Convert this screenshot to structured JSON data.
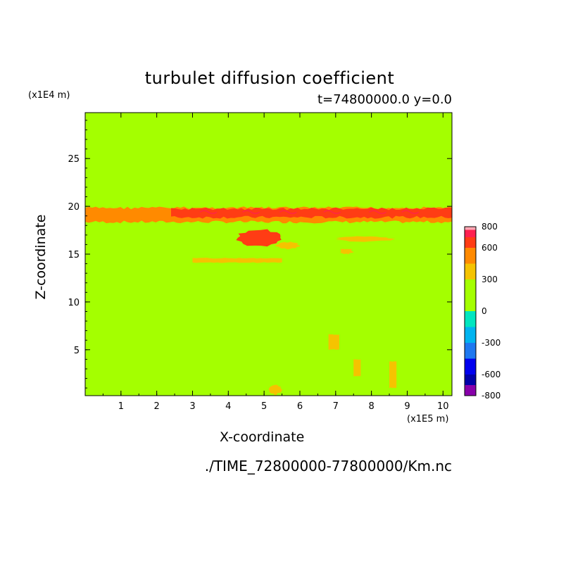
{
  "chart_data": {
    "type": "contour",
    "title": "turbulet diffusion coefficient",
    "subtitle": "t=74800000.0 y=0.0",
    "xlabel": "X-coordinate",
    "ylabel": "Z-coordinate",
    "x_unit": "(x1E5 m)",
    "y_unit": "(x1E4 m)",
    "xlim": [
      0,
      10.25
    ],
    "ylim": [
      0.2,
      29.8
    ],
    "x_ticks": [
      1,
      2,
      3,
      4,
      5,
      6,
      7,
      8,
      9,
      10
    ],
    "y_ticks": [
      5,
      10,
      15,
      20,
      25
    ],
    "background_level_color": "#a4ff00",
    "colorbar": {
      "range": [
        -800,
        800
      ],
      "labels": [
        800,
        600,
        300,
        0,
        -300,
        -600,
        -800
      ],
      "levels": [
        {
          "from": -800,
          "to": -700,
          "color": "#8800aa"
        },
        {
          "from": -700,
          "to": -600,
          "color": "#0000a8"
        },
        {
          "from": -600,
          "to": -450,
          "color": "#0000ee"
        },
        {
          "from": -450,
          "to": -300,
          "color": "#1e78f0"
        },
        {
          "from": -300,
          "to": -150,
          "color": "#00b4f0"
        },
        {
          "from": -150,
          "to": 0,
          "color": "#00e6c0"
        },
        {
          "from": 0,
          "to": 150,
          "color": "#a4ff00"
        },
        {
          "from": 150,
          "to": 300,
          "color": "#a4ff00"
        },
        {
          "from": 300,
          "to": 450,
          "color": "#f5c300"
        },
        {
          "from": 450,
          "to": 600,
          "color": "#ff8a00"
        },
        {
          "from": 600,
          "to": 700,
          "color": "#ff3c14"
        },
        {
          "from": 700,
          "to": 770,
          "color": "#ff2050"
        },
        {
          "from": 770,
          "to": 800,
          "color": "#ffa8b4"
        }
      ]
    },
    "features": [
      {
        "kind": "band",
        "x": [
          0,
          10.25
        ],
        "z": [
          18.3,
          19.9
        ],
        "level": 450,
        "color": "#ff8a00"
      },
      {
        "kind": "band",
        "x": [
          2.4,
          10.25
        ],
        "z": [
          18.8,
          19.8
        ],
        "level": 600,
        "color": "#ff3c14"
      },
      {
        "kind": "blob",
        "x": [
          4.2,
          5.6
        ],
        "z": [
          15.8,
          17.6
        ],
        "level": 600,
        "color": "#ff3c14"
      },
      {
        "kind": "blob",
        "x": [
          5.3,
          6.0
        ],
        "z": [
          15.5,
          16.3
        ],
        "level": 450,
        "color": "#f5c300"
      },
      {
        "kind": "blob",
        "x": [
          7.0,
          8.6
        ],
        "z": [
          16.3,
          16.9
        ],
        "level": 450,
        "color": "#f5c300"
      },
      {
        "kind": "blob",
        "x": [
          7.1,
          7.5
        ],
        "z": [
          15.0,
          15.6
        ],
        "level": 450,
        "color": "#f5c300"
      },
      {
        "kind": "streak",
        "x": [
          3.0,
          5.5
        ],
        "z": [
          14.1,
          14.6
        ],
        "level": 300,
        "color": "#f5c300"
      },
      {
        "kind": "blob",
        "x": [
          5.1,
          5.5
        ],
        "z": [
          0.3,
          1.4
        ],
        "level": 300,
        "color": "#f5c300"
      },
      {
        "kind": "streak",
        "x": [
          6.8,
          7.1
        ],
        "z": [
          5.0,
          6.6
        ],
        "level": 300,
        "color": "#f5c300"
      },
      {
        "kind": "streak",
        "x": [
          7.5,
          7.7
        ],
        "z": [
          2.2,
          4.0
        ],
        "level": 300,
        "color": "#f5c300"
      },
      {
        "kind": "streak",
        "x": [
          8.5,
          8.7
        ],
        "z": [
          1.0,
          3.8
        ],
        "level": 300,
        "color": "#f5c300"
      }
    ]
  },
  "source_file": "./TIME_72800000-77800000/Km.nc"
}
